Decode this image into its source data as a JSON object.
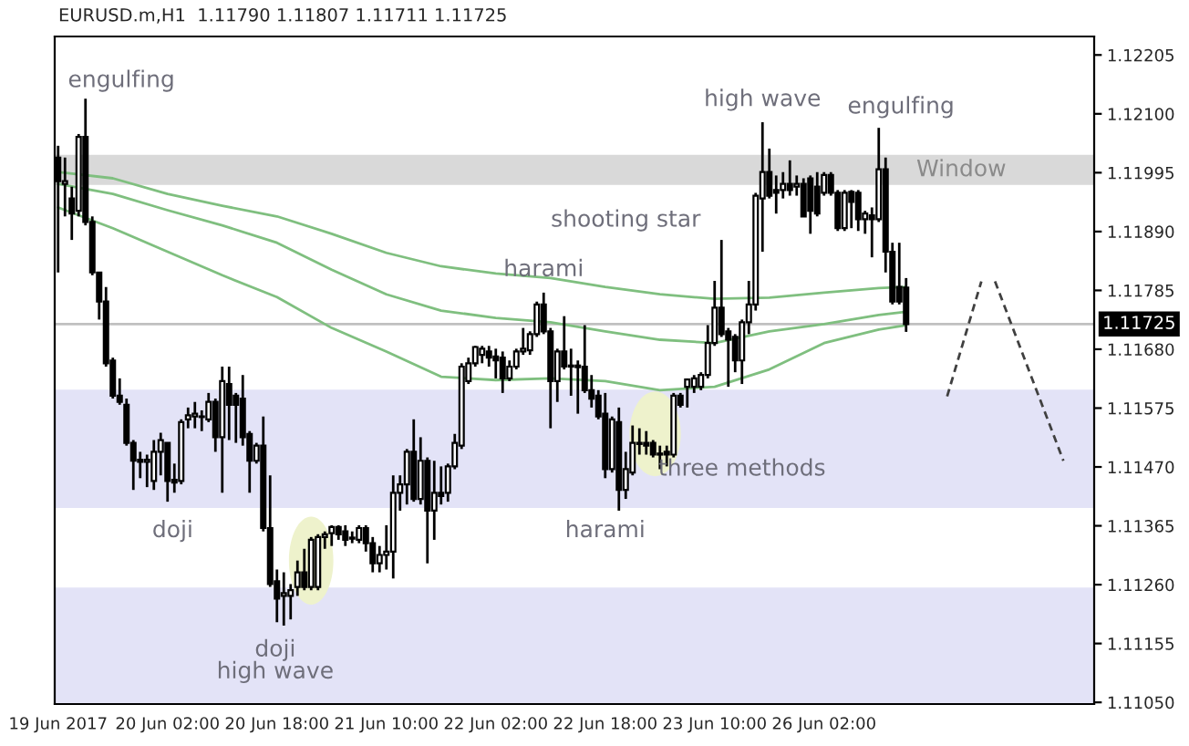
{
  "chart_data": {
    "type": "candlestick",
    "title": "EURUSD.m,H1  1.11790 1.11807 1.11711 1.11725",
    "categories": [
      "19 Jun 2017",
      null,
      null,
      null,
      null,
      null,
      null,
      null,
      null,
      null,
      null,
      null,
      null,
      null,
      null,
      null,
      "20 Jun 02:00",
      null,
      null,
      null,
      null,
      null,
      null,
      null,
      null,
      null,
      null,
      null,
      null,
      null,
      null,
      null,
      "20 Jun 18:00",
      null,
      null,
      null,
      null,
      null,
      null,
      null,
      null,
      null,
      null,
      null,
      null,
      null,
      null,
      null,
      "21 Jun 10:00",
      null,
      null,
      null,
      null,
      null,
      null,
      null,
      null,
      null,
      null,
      null,
      null,
      null,
      null,
      null,
      "22 Jun 02:00",
      null,
      null,
      null,
      null,
      null,
      null,
      null,
      null,
      null,
      null,
      null,
      null,
      null,
      null,
      null,
      "22 Jun 18:00",
      null,
      null,
      null,
      null,
      null,
      null,
      null,
      null,
      null,
      null,
      null,
      null,
      null,
      null,
      null,
      "23 Jun 10:00",
      null,
      null,
      null,
      null,
      null,
      null,
      null,
      null,
      null,
      null,
      null,
      null,
      null,
      null,
      null,
      "26 Jun 02:00",
      null,
      null,
      null,
      null,
      null,
      null,
      null,
      null,
      null,
      null,
      null,
      null,
      null,
      null,
      null,
      null,
      null,
      null,
      null,
      null,
      null,
      null,
      null,
      null,
      null,
      null,
      null,
      null,
      null,
      null,
      null,
      null,
      null,
      null,
      null,
      null,
      null,
      null,
      null
    ],
    "ohlc": [
      [
        1.12022,
        1.12043,
        1.11817,
        1.1198
      ],
      [
        1.11975,
        1.12022,
        1.11917,
        1.1198
      ],
      [
        1.11949,
        1.1197,
        1.11875,
        1.11922
      ],
      [
        1.11927,
        1.12064,
        1.11917,
        1.12059
      ],
      [
        1.12059,
        1.12127,
        1.11901,
        1.11907
      ],
      [
        1.11907,
        1.11917,
        1.11812,
        1.11817
      ],
      [
        1.11817,
        1.11817,
        1.11733,
        1.11765
      ],
      [
        1.11765,
        1.11791,
        1.11649,
        1.11655
      ],
      [
        1.1166,
        1.11665,
        1.11592,
        1.11597
      ],
      [
        1.11597,
        1.11628,
        1.11581,
        1.11586
      ],
      [
        1.11581,
        1.11592,
        1.11508,
        1.11513
      ],
      [
        1.11513,
        1.11518,
        1.11429,
        1.11481
      ],
      [
        1.11483,
        1.11497,
        1.1145,
        1.11479
      ],
      [
        1.11479,
        1.11492,
        1.11434,
        1.11483
      ],
      [
        1.11445,
        1.11518,
        1.11429,
        1.11497
      ],
      [
        1.11497,
        1.11531,
        1.11455,
        1.11518
      ],
      [
        1.11513,
        1.11513,
        1.11408,
        1.11445
      ],
      [
        1.11447,
        1.11476,
        1.11424,
        1.11442
      ],
      [
        1.11445,
        1.11555,
        1.11439,
        1.1155
      ],
      [
        1.11555,
        1.11576,
        1.11539,
        1.11562
      ],
      [
        1.1156,
        1.11586,
        1.11539,
        1.11565
      ],
      [
        1.1156,
        1.11571,
        1.11534,
        1.11559
      ],
      [
        1.11555,
        1.11602,
        1.1155,
        1.11586
      ],
      [
        1.11586,
        1.11592,
        1.11497,
        1.11523
      ],
      [
        1.11523,
        1.11649,
        1.11424,
        1.11623
      ],
      [
        1.11618,
        1.11649,
        1.11518,
        1.11581
      ],
      [
        1.11597,
        1.11602,
        1.11513,
        1.11581
      ],
      [
        1.11592,
        1.11634,
        1.11508,
        1.11523
      ],
      [
        1.11529,
        1.11534,
        1.11424,
        1.11481
      ],
      [
        1.11481,
        1.11513,
        1.11476,
        1.11508
      ],
      [
        1.11508,
        1.1156,
        1.11355,
        1.11361
      ],
      [
        1.11361,
        1.11455,
        1.11256,
        1.11261
      ],
      [
        1.11266,
        1.11287,
        1.11193,
        1.11235
      ],
      [
        1.1124,
        1.11282,
        1.11187,
        1.11245
      ],
      [
        1.1124,
        1.11261,
        1.11198,
        1.1125
      ],
      [
        1.11256,
        1.11303,
        1.1124,
        1.11282
      ],
      [
        1.11282,
        1.11324,
        1.1125,
        1.11256
      ],
      [
        1.11256,
        1.11345,
        1.1125,
        1.1134
      ],
      [
        1.11256,
        1.1135,
        1.1125,
        1.11345
      ],
      [
        1.11345,
        1.11355,
        1.11324,
        1.1135
      ],
      [
        1.11352,
        1.11366,
        1.11329,
        1.11363
      ],
      [
        1.11363,
        1.11366,
        1.1134,
        1.1135
      ],
      [
        1.11355,
        1.11366,
        1.11329,
        1.1134
      ],
      [
        1.11342,
        1.11355,
        1.11334,
        1.11344
      ],
      [
        1.1134,
        1.11366,
        1.11334,
        1.11361
      ],
      [
        1.11361,
        1.11366,
        1.11319,
        1.11334
      ],
      [
        1.11334,
        1.11345,
        1.11282,
        1.11298
      ],
      [
        1.11298,
        1.11329,
        1.11282,
        1.11313
      ],
      [
        1.11313,
        1.11366,
        1.11287,
        1.11319
      ],
      [
        1.11319,
        1.11455,
        1.11271,
        1.11424
      ],
      [
        1.11424,
        1.11455,
        1.11392,
        1.11439
      ],
      [
        1.11439,
        1.11502,
        1.11403,
        1.11497
      ],
      [
        1.11497,
        1.11555,
        1.11408,
        1.11413
      ],
      [
        1.11413,
        1.11523,
        1.11403,
        1.11481
      ],
      [
        1.11481,
        1.11487,
        1.11298,
        1.11392
      ],
      [
        1.11392,
        1.11481,
        1.1134,
        1.11424
      ],
      [
        1.11424,
        1.11471,
        1.11403,
        1.11418
      ],
      [
        1.11424,
        1.11476,
        1.11408,
        1.11471
      ],
      [
        1.11471,
        1.11529,
        1.11466,
        1.11513
      ],
      [
        1.11508,
        1.11655,
        1.11502,
        1.11649
      ],
      [
        1.11623,
        1.11665,
        1.11618,
        1.11655
      ],
      [
        1.11655,
        1.11686,
        1.11649,
        1.11684
      ],
      [
        1.1167,
        1.11686,
        1.11655,
        1.11681
      ],
      [
        1.11676,
        1.11686,
        1.11649,
        1.11665
      ],
      [
        1.11667,
        1.11681,
        1.11628,
        1.1166
      ],
      [
        1.11665,
        1.11676,
        1.11602,
        1.11628
      ],
      [
        1.11628,
        1.1166,
        1.11623,
        1.11649
      ],
      [
        1.11649,
        1.11681,
        1.11644,
        1.11676
      ],
      [
        1.11676,
        1.11718,
        1.1167,
        1.11681
      ],
      [
        1.11678,
        1.11712,
        1.1167,
        1.11707
      ],
      [
        1.11707,
        1.11765,
        1.11702,
        1.1176
      ],
      [
        1.1176,
        1.11781,
        1.11707,
        1.11712
      ],
      [
        1.11712,
        1.11718,
        1.11539,
        1.11623
      ],
      [
        1.11623,
        1.11681,
        1.11586,
        1.11676
      ],
      [
        1.11676,
        1.11739,
        1.11644,
        1.11649
      ],
      [
        1.11651,
        1.11681,
        1.11597,
        1.11649
      ],
      [
        1.11651,
        1.1166,
        1.11565,
        1.11648
      ],
      [
        1.11649,
        1.11723,
        1.11602,
        1.11607
      ],
      [
        1.11607,
        1.11634,
        1.11576,
        1.11592
      ],
      [
        1.11597,
        1.11607,
        1.11555,
        1.1156
      ],
      [
        1.11565,
        1.11602,
        1.1145,
        1.11466
      ],
      [
        1.11466,
        1.1156,
        1.1146,
        1.11555
      ],
      [
        1.1155,
        1.11576,
        1.11392,
        1.11429
      ],
      [
        1.11429,
        1.11497,
        1.11413,
        1.11466
      ],
      [
        1.1146,
        1.11544,
        1.11455,
        1.11513
      ],
      [
        1.11513,
        1.11539,
        1.11492,
        1.11511
      ],
      [
        1.11513,
        1.11534,
        1.11492,
        1.11508
      ],
      [
        1.11513,
        1.11518,
        1.11487,
        1.11492
      ],
      [
        1.11494,
        1.11508,
        1.11466,
        1.11492
      ],
      [
        1.11497,
        1.11508,
        1.11471,
        1.11492
      ],
      [
        1.11492,
        1.11602,
        1.11487,
        1.11597
      ],
      [
        1.11597,
        1.11602,
        1.11576,
        1.11581
      ],
      [
        1.11613,
        1.11628,
        1.11576,
        1.11626
      ],
      [
        1.11613,
        1.11634,
        1.11602,
        1.11628
      ],
      [
        1.11613,
        1.11639,
        1.11607,
        1.11634
      ],
      [
        1.11634,
        1.11723,
        1.11628,
        1.11691
      ],
      [
        1.11691,
        1.11802,
        1.11686,
        1.11754
      ],
      [
        1.11754,
        1.11875,
        1.11702,
        1.11707
      ],
      [
        1.11712,
        1.11718,
        1.11613,
        1.11697
      ],
      [
        1.11702,
        1.11707,
        1.11639,
        1.1166
      ],
      [
        1.1166,
        1.11733,
        1.11618,
        1.11728
      ],
      [
        1.11728,
        1.11802,
        1.11707,
        1.1176
      ],
      [
        1.1176,
        1.11959,
        1.11749,
        1.11954
      ],
      [
        1.11949,
        1.12085,
        1.11854,
        1.11996
      ],
      [
        1.11996,
        1.12038,
        1.11949,
        1.11954
      ],
      [
        1.11964,
        1.1199,
        1.11922,
        1.11959
      ],
      [
        1.11964,
        1.11996,
        1.11949,
        1.11975
      ],
      [
        1.11975,
        1.12017,
        1.11954,
        1.11964
      ],
      [
        1.1197,
        1.1199,
        1.11954,
        1.11975
      ],
      [
        1.11975,
        1.11985,
        1.11917,
        1.11917
      ],
      [
        1.11985,
        1.1199,
        1.11886,
        1.11927
      ],
      [
        1.1197,
        1.11996,
        1.11917,
        1.11922
      ],
      [
        1.11959,
        1.11996,
        1.11954,
        1.11991
      ],
      [
        1.11991,
        1.11996,
        1.11954,
        1.11959
      ],
      [
        1.11959,
        1.11964,
        1.11891,
        1.11896
      ],
      [
        1.11896,
        1.11964,
        1.11891,
        1.11959
      ],
      [
        1.11961,
        1.11964,
        1.11896,
        1.11943
      ],
      [
        1.11959,
        1.11964,
        1.11891,
        1.11912
      ],
      [
        1.11912,
        1.11927,
        1.11886,
        1.11922
      ],
      [
        1.11919,
        1.11933,
        1.11844,
        1.11912
      ],
      [
        1.11912,
        1.12075,
        1.11907,
        1.12001
      ],
      [
        1.12001,
        1.12022,
        1.11817,
        1.11854
      ],
      [
        1.11854,
        1.1187,
        1.1176,
        1.11765
      ],
      [
        1.11791,
        1.1187,
        1.1176,
        1.11765
      ],
      [
        1.1179,
        1.11807,
        1.11711,
        1.11725
      ],
      null,
      null,
      null,
      null,
      null,
      null,
      null,
      null,
      null,
      null,
      null,
      null,
      null,
      null,
      null,
      null,
      null,
      null,
      null,
      null,
      null,
      null,
      null,
      null,
      null,
      null,
      null
    ],
    "series": [
      {
        "type": "line",
        "color": "#7fbf7f",
        "values": [
          1.11996,
          null,
          null,
          null,
          null,
          null,
          null,
          null,
          1.11985,
          null,
          null,
          null,
          null,
          null,
          null,
          null,
          1.11957,
          null,
          null,
          null,
          null,
          null,
          null,
          null,
          1.11936,
          null,
          null,
          null,
          null,
          null,
          null,
          null,
          1.11917,
          null,
          null,
          null,
          null,
          null,
          null,
          null,
          1.11886,
          null,
          null,
          null,
          null,
          null,
          null,
          null,
          1.11852,
          null,
          null,
          null,
          null,
          null,
          null,
          null,
          1.11828,
          null,
          null,
          null,
          null,
          null,
          null,
          null,
          1.11815,
          null,
          null,
          null,
          null,
          null,
          null,
          null,
          1.11807,
          null,
          null,
          null,
          null,
          null,
          null,
          null,
          1.11791,
          null,
          null,
          null,
          null,
          null,
          null,
          null,
          1.11778,
          null,
          null,
          null,
          null,
          null,
          null,
          null,
          1.1177,
          null,
          null,
          null,
          null,
          null,
          null,
          null,
          1.11772,
          null,
          null,
          null,
          null,
          null,
          null,
          null,
          1.11781,
          null,
          null,
          null,
          null,
          null,
          null,
          null,
          1.11789,
          null,
          null,
          null,
          1.11791,
          null,
          null,
          null,
          null,
          null,
          null,
          null,
          null,
          null,
          null,
          null,
          null,
          null,
          null,
          null,
          null,
          null,
          null,
          null,
          null,
          null,
          null,
          null,
          null,
          null,
          null,
          null
        ]
      },
      {
        "type": "line",
        "color": "#7fbf7f",
        "values": [
          1.11975,
          null,
          null,
          null,
          null,
          null,
          null,
          null,
          1.11957,
          null,
          null,
          null,
          null,
          null,
          null,
          null,
          1.11928,
          null,
          null,
          null,
          null,
          null,
          null,
          null,
          1.11901,
          null,
          null,
          null,
          null,
          null,
          null,
          null,
          1.1187,
          null,
          null,
          null,
          null,
          null,
          null,
          null,
          1.11822,
          null,
          null,
          null,
          null,
          null,
          null,
          null,
          1.11778,
          null,
          null,
          null,
          null,
          null,
          null,
          null,
          1.11749,
          null,
          null,
          null,
          null,
          null,
          null,
          null,
          1.11736,
          null,
          null,
          null,
          null,
          null,
          null,
          null,
          1.11728,
          null,
          null,
          null,
          null,
          null,
          null,
          null,
          1.11712,
          null,
          null,
          null,
          null,
          null,
          null,
          null,
          1.11697,
          null,
          null,
          null,
          null,
          null,
          null,
          null,
          1.11691,
          null,
          null,
          null,
          null,
          null,
          null,
          null,
          1.11712,
          null,
          null,
          null,
          null,
          null,
          null,
          null,
          1.11725,
          null,
          null,
          null,
          null,
          null,
          null,
          null,
          1.11741,
          null,
          null,
          null,
          1.11747,
          null,
          null,
          null,
          null,
          null,
          null,
          null,
          null,
          null,
          null,
          null,
          null,
          null,
          null,
          null,
          null,
          null,
          null,
          null,
          null,
          null,
          null,
          null,
          null,
          null,
          null,
          null
        ]
      },
      {
        "type": "line",
        "color": "#7fbf7f",
        "values": [
          1.11933,
          null,
          null,
          null,
          null,
          null,
          null,
          null,
          1.11896,
          null,
          null,
          null,
          null,
          null,
          null,
          null,
          1.11854,
          null,
          null,
          null,
          null,
          null,
          null,
          null,
          1.11812,
          null,
          null,
          null,
          null,
          null,
          null,
          null,
          1.11773,
          null,
          null,
          null,
          null,
          null,
          null,
          null,
          1.11718,
          null,
          null,
          null,
          null,
          null,
          null,
          null,
          1.11676,
          null,
          null,
          null,
          null,
          null,
          null,
          null,
          1.11631,
          null,
          null,
          null,
          null,
          null,
          null,
          null,
          1.11625,
          null,
          null,
          null,
          null,
          null,
          null,
          null,
          1.11628,
          null,
          null,
          null,
          null,
          null,
          null,
          null,
          1.11623,
          null,
          null,
          null,
          null,
          null,
          null,
          null,
          1.11607,
          null,
          null,
          null,
          null,
          null,
          null,
          null,
          1.11613,
          null,
          null,
          null,
          null,
          null,
          null,
          null,
          1.11644,
          null,
          null,
          null,
          null,
          null,
          null,
          null,
          1.11691,
          null,
          null,
          null,
          null,
          null,
          null,
          null,
          1.11715,
          null,
          null,
          null,
          1.11723,
          null,
          null,
          null,
          null,
          null,
          null,
          null,
          null,
          null,
          null,
          null,
          null,
          null,
          null,
          null,
          null,
          null,
          null,
          null,
          null,
          null,
          null,
          null,
          null,
          null,
          null,
          null
        ]
      },
      {
        "type": "line",
        "color": "#404040",
        "line_style": "dashed",
        "values": [
          null,
          null,
          null,
          null,
          null,
          null,
          null,
          null,
          null,
          null,
          null,
          null,
          null,
          null,
          null,
          null,
          null,
          null,
          null,
          null,
          null,
          null,
          null,
          null,
          null,
          null,
          null,
          null,
          null,
          null,
          null,
          null,
          null,
          null,
          null,
          null,
          null,
          null,
          null,
          null,
          null,
          null,
          null,
          null,
          null,
          null,
          null,
          null,
          null,
          null,
          null,
          null,
          null,
          null,
          null,
          null,
          null,
          null,
          null,
          null,
          null,
          null,
          null,
          null,
          null,
          null,
          null,
          null,
          null,
          null,
          null,
          null,
          null,
          null,
          null,
          null,
          null,
          null,
          null,
          null,
          null,
          null,
          null,
          null,
          null,
          null,
          null,
          null,
          null,
          null,
          null,
          null,
          null,
          null,
          null,
          null,
          null,
          null,
          null,
          null,
          null,
          null,
          null,
          null,
          null,
          null,
          null,
          null,
          null,
          null,
          null,
          null,
          null,
          null,
          null,
          null,
          null,
          null,
          null,
          null,
          null,
          null,
          null,
          null,
          null,
          null,
          null,
          null,
          null,
          null,
          1.11596,
          null,
          null,
          null,
          null,
          1.11801,
          null,
          null,
          null,
          null,
          null,
          null,
          null,
          null,
          null,
          null,
          null,
          null,
          null,
          null,
          null,
          null
        ]
      },
      {
        "type": "line",
        "color": "#404040",
        "line_style": "dashed",
        "values": [
          null,
          null,
          null,
          null,
          null,
          null,
          null,
          null,
          null,
          null,
          null,
          null,
          null,
          null,
          null,
          null,
          null,
          null,
          null,
          null,
          null,
          null,
          null,
          null,
          null,
          null,
          null,
          null,
          null,
          null,
          null,
          null,
          null,
          null,
          null,
          null,
          null,
          null,
          null,
          null,
          null,
          null,
          null,
          null,
          null,
          null,
          null,
          null,
          null,
          null,
          null,
          null,
          null,
          null,
          null,
          null,
          null,
          null,
          null,
          null,
          null,
          null,
          null,
          null,
          null,
          null,
          null,
          null,
          null,
          null,
          null,
          null,
          null,
          null,
          null,
          null,
          null,
          null,
          null,
          null,
          null,
          null,
          null,
          null,
          null,
          null,
          null,
          null,
          null,
          null,
          null,
          null,
          null,
          null,
          null,
          null,
          null,
          null,
          null,
          null,
          null,
          null,
          null,
          null,
          null,
          null,
          null,
          null,
          null,
          null,
          null,
          null,
          null,
          null,
          null,
          null,
          null,
          null,
          null,
          null,
          null,
          null,
          null,
          null,
          null,
          null,
          null,
          null,
          null,
          null,
          null,
          null,
          null,
          null,
          null,
          null,
          null,
          1.11801,
          null,
          null,
          null,
          null,
          null,
          null,
          null,
          null,
          null,
          1.11481,
          null,
          null,
          null,
          null
        ]
      }
    ],
    "ylim": [
      1.11047,
      1.12238
    ],
    "yticks": [
      {
        "value": 1.12205,
        "label": "1.12205"
      },
      {
        "value": 1.121,
        "label": "1.12100"
      },
      {
        "value": 1.11995,
        "label": "1.11995"
      },
      {
        "value": 1.1189,
        "label": "1.11890"
      },
      {
        "value": 1.11785,
        "label": "1.11785"
      },
      {
        "value": 1.1168,
        "label": "1.11680"
      },
      {
        "value": 1.11575,
        "label": "1.11575"
      },
      {
        "value": 1.1147,
        "label": "1.11470"
      },
      {
        "value": 1.11365,
        "label": "1.11365"
      },
      {
        "value": 1.1126,
        "label": "1.11260"
      },
      {
        "value": 1.11155,
        "label": "1.11155"
      },
      {
        "value": 1.1105,
        "label": "1.11050"
      }
    ],
    "bands": [
      {
        "axis": "y",
        "from": 1.11973,
        "to": 1.12027,
        "label": "Window",
        "color": "#d9d9d9"
      },
      {
        "axis": "y",
        "from": 1.11397,
        "to": 1.11608,
        "color": "#e3e3f7"
      },
      {
        "axis": "y",
        "from": 1.11047,
        "to": 1.11255,
        "color": "#e3e3f7"
      }
    ],
    "ref_lines": [
      {
        "axis": "y",
        "value": 1.11725,
        "label": "1.11725",
        "color": "#c0c0c0"
      }
    ],
    "annotations": [
      "engulfing",
      "high wave",
      "engulfing",
      "shooting star",
      {
        "text": "harami",
        "y": 1.11781
      },
      "doji",
      {
        "text": "doji\nhigh wave",
        "y": 1.11187
      },
      "harami",
      "three methods"
    ],
    "grid": false
  }
}
